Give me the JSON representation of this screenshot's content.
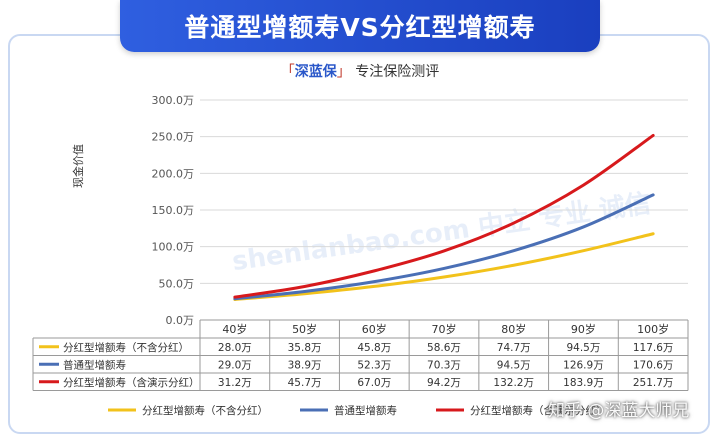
{
  "header": {
    "title": "普通型增额寿VS分红型增额寿",
    "subtitle_open": "「",
    "subtitle_brand": "深蓝保",
    "subtitle_close": "」",
    "subtitle_rest": "专注保险测评"
  },
  "watermark": "shenlanbao.com 中立 专业 诚信",
  "attribution": "知乎 @深蓝大师兄",
  "chart_data": {
    "type": "line",
    "ylabel": "现金价值",
    "xlabel": "",
    "categories": [
      "40岁",
      "50岁",
      "60岁",
      "70岁",
      "80岁",
      "90岁",
      "100岁"
    ],
    "ylim": [
      0,
      300
    ],
    "yticks": [
      "0.0万",
      "50.0万",
      "100.0万",
      "150.0万",
      "200.0万",
      "250.0万",
      "300.0万"
    ],
    "series": [
      {
        "name": "分红型增额寿（不含分红）",
        "color": "#f2c21b",
        "values": [
          28.0,
          35.8,
          45.8,
          58.6,
          74.7,
          94.5,
          117.6
        ],
        "labels": [
          "28.0万",
          "35.8万",
          "45.8万",
          "58.6万",
          "74.7万",
          "94.5万",
          "117.6万"
        ]
      },
      {
        "name": "普通型增额寿",
        "color": "#4a6fb5",
        "values": [
          29.0,
          38.9,
          52.3,
          70.3,
          94.5,
          126.9,
          170.6
        ],
        "labels": [
          "29.0万",
          "38.9万",
          "52.3万",
          "70.3万",
          "94.5万",
          "126.9万",
          "170.6万"
        ]
      },
      {
        "name": "分红型增额寿（含演示分红）",
        "color": "#d7191c",
        "values": [
          31.2,
          45.7,
          67.0,
          94.2,
          132.2,
          183.9,
          251.7
        ],
        "labels": [
          "31.2万",
          "45.7万",
          "67.0万",
          "94.2万",
          "132.2万",
          "183.9万",
          "251.7万"
        ]
      }
    ],
    "grid": true,
    "legend": "bottom"
  }
}
